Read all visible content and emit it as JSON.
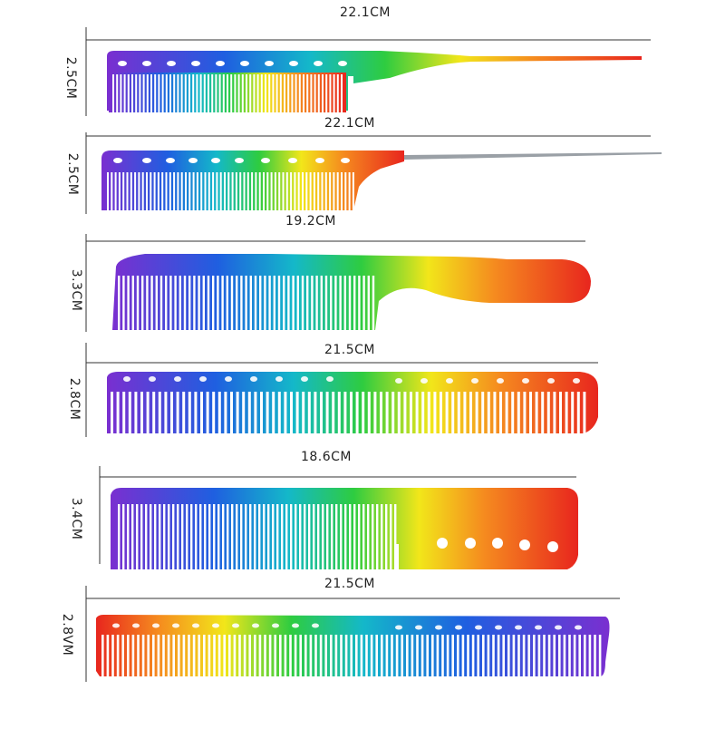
{
  "combs": [
    {
      "name": "comb-1-rat-tail",
      "width_label": "22.1CM",
      "height_label": "2.5CM"
    },
    {
      "name": "comb-2-pin-tail",
      "width_label": "22.1CM",
      "height_label": "2.5CM"
    },
    {
      "name": "comb-3-handle",
      "width_label": "19.2CM",
      "height_label": "3.3CM"
    },
    {
      "name": "comb-4-cutting",
      "width_label": "21.5CM",
      "height_label": "2.8CM"
    },
    {
      "name": "comb-5-holed-handle",
      "width_label": "18.6CM",
      "height_label": "3.4CM"
    },
    {
      "name": "comb-6-wide-cutting",
      "width_label": "21.5CM",
      "height_label": "2.8VM"
    }
  ],
  "colors": {
    "purple": "#7a2fd0",
    "blue": "#1f5fe0",
    "cyan": "#14b8c9",
    "green": "#2ecc40",
    "yellow": "#f2e61a",
    "orange": "#f58a1f",
    "red": "#e8261e",
    "line": "#333333"
  }
}
